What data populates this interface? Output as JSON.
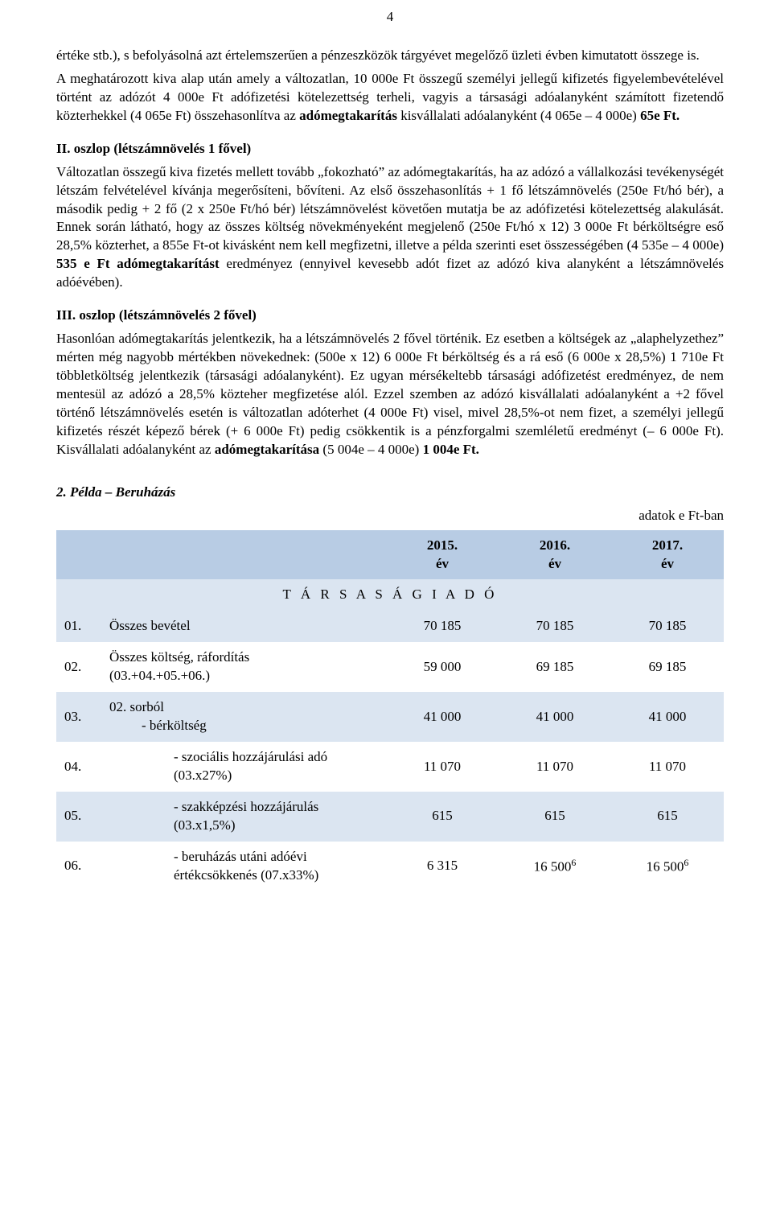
{
  "page_number": "4",
  "p1": "értéke stb.), s befolyásolná azt értelemszerűen a pénzeszközök tárgyévet megelőző üzleti évben kimutatott összege is.",
  "p2_a": "A meghatározott kiva alap után amely a változatlan, 10 000e Ft összegű személyi jellegű kifizetés figyelembevételével történt az adózót 4 000e Ft adófizetési kötelezettség terheli, vagyis a társasági adóalanyként számított fizetendő közterhekkel (4 065e Ft) összehasonlítva az ",
  "p2_bold": "adómegtakarítás",
  "p2_b": " kisvállalati adóalanyként (4 065e – 4 000e) ",
  "p2_bold2": "65e Ft.",
  "s2_title": "II.  oszlop (létszámnövelés 1 fővel)",
  "p3_a": "Változatlan összegű kiva fizetés mellett tovább „fokozható” az adómegtakarítás, ha az adózó a vállalkozási tevékenységét létszám felvételével kívánja megerősíteni, bővíteni. Az első összehasonlítás + 1 fő létszámnövelés (250e Ft/hó bér), a második pedig + 2 fő (2 x 250e Ft/hó bér) létszámnövelést követően mutatja be az adófizetési kötelezettség alakulását. Ennek során látható, hogy az összes költség növekményeként megjelenő (250e Ft/hó x 12) 3 000e Ft bérköltségre eső 28,5% közterhet, a 855e Ft-ot kivásként nem kell megfizetni, illetve a példa szerinti eset összességében (4 535e – 4 000e) ",
  "p3_bold": "535 e Ft adómegtakarítást",
  "p3_b": " eredményez (ennyivel kevesebb adót fizet az adózó kiva alanyként a létszámnövelés adóévében).",
  "s3_title": "III. oszlop (létszámnövelés 2 fővel)",
  "p4_a": "Hasonlóan adómegtakarítás jelentkezik, ha a létszámnövelés 2 fővel történik. Ez esetben a költségek az „alaphelyzethez” mérten még nagyobb mértékben növekednek: (500e x 12) 6 000e Ft bérköltség és a rá eső (6 000e x 28,5%) 1 710e Ft többletköltség jelentkezik (társasági adóalanyként). Ez ugyan mérsékeltebb társasági adófizetést eredményez, de nem mentesül az adózó a 28,5% közteher megfizetése alól. Ezzel szemben az adózó kisvállalati adóalanyként a +2 fővel történő létszámnövelés esetén is változatlan adóterhet (4 000e Ft) visel, mivel 28,5%-ot nem fizet, a személyi jellegű kifizetés részét képező bérek (+ 6 000e Ft) pedig csökkentik is a pénzforgalmi szemléletű eredményt (– 6 000e Ft). Kisvállalati adóalanyként az ",
  "p4_bold1": "adómegtakarítása",
  "p4_b": " (5 004e – 4 000e) ",
  "p4_bold2": "1 004e Ft.",
  "example_title": "2. Példa – Beruházás",
  "right_note": "adatok e Ft-ban",
  "table": {
    "header": {
      "c1": "2015.\név",
      "c2": "2016.\név",
      "c3": "2017.\név"
    },
    "banner": "T Á R S A S Á G I  A D Ó",
    "rows": [
      {
        "n": "01.",
        "label": "Összes bevétel",
        "indent": 0,
        "v1": "70 185",
        "v2": "70 185",
        "v3": "70 185",
        "tone": "blue"
      },
      {
        "n": "02.",
        "label": "Összes költség, ráfordítás\n(03.+04.+05.+06.)",
        "indent": 0,
        "v1": "59 000",
        "v2": "69 185",
        "v3": "69 185",
        "tone": "white"
      },
      {
        "n": "03.",
        "label": "02. sorból\n- bérköltség",
        "indent": 0,
        "sub": true,
        "v1": "41 000",
        "v2": "41 000",
        "v3": "41 000",
        "tone": "blue"
      },
      {
        "n": "04.",
        "label": "- szociális hozzájárulási adó\n(03.x27%)",
        "indent": 2,
        "v1": "11 070",
        "v2": "11 070",
        "v3": "11 070",
        "tone": "white"
      },
      {
        "n": "05.",
        "label": "- szakképzési hozzájárulás\n(03.x1,5%)",
        "indent": 2,
        "v1": "615",
        "v2": "615",
        "v3": "615",
        "tone": "blue"
      },
      {
        "n": "06.",
        "label": "- beruházás utáni adóévi\nértékcsökkenés (07.x33%)",
        "indent": 2,
        "v1": "6 315",
        "v2": "16 500",
        "v3": "16 500",
        "sup2": "6",
        "sup3": "6",
        "tone": "white"
      }
    ]
  },
  "colors": {
    "head_bg": "#b8cce4",
    "band_bg": "#dbe5f1",
    "text": "#000000",
    "page_bg": "#ffffff"
  }
}
